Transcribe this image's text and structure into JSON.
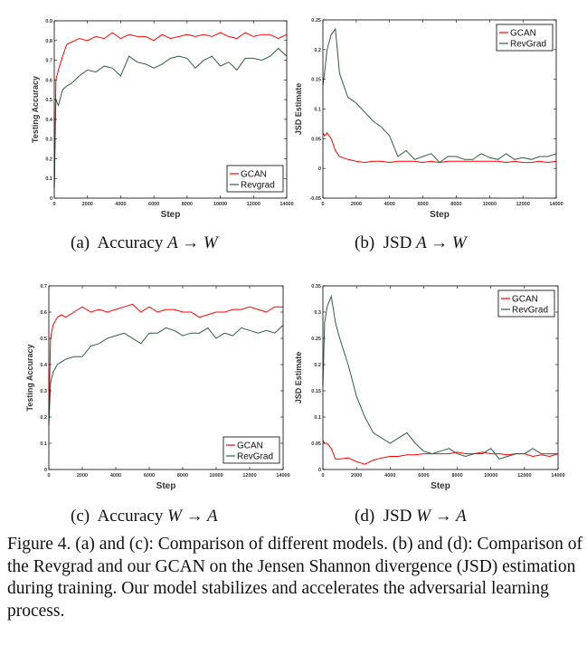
{
  "colors": {
    "GCAN": "#ff0000",
    "RevGrad": "#2e5e45"
  },
  "chart_data": [
    {
      "id": "a",
      "type": "line",
      "xlabel": "Step",
      "ylabel": "Testing Accuracy",
      "xlim": [
        0,
        14000
      ],
      "ylim": [
        0,
        0.9
      ],
      "xticks": [
        "0",
        "2000",
        "4000",
        "6000",
        "8000",
        "10000",
        "12000",
        "14000"
      ],
      "yticks": [
        "0",
        "0.1",
        "0.2",
        "0.3",
        "0.4",
        "0.5",
        "0.6",
        "0.7",
        "0.8",
        "0.9"
      ],
      "legend": "bottom-right",
      "grid": false,
      "x": [
        0,
        100,
        250,
        500,
        750,
        1000,
        1500,
        2000,
        2500,
        3000,
        3500,
        4000,
        4500,
        5000,
        5500,
        6000,
        6500,
        7000,
        7500,
        8000,
        8500,
        9000,
        9500,
        10000,
        10500,
        11000,
        11500,
        12000,
        12500,
        13000,
        13500,
        14000
      ],
      "series": [
        {
          "name": "GCAN",
          "values": [
            0.05,
            0.6,
            0.65,
            0.72,
            0.78,
            0.79,
            0.81,
            0.8,
            0.82,
            0.81,
            0.84,
            0.81,
            0.83,
            0.82,
            0.82,
            0.8,
            0.83,
            0.81,
            0.82,
            0.83,
            0.82,
            0.83,
            0.82,
            0.84,
            0.82,
            0.81,
            0.84,
            0.82,
            0.83,
            0.83,
            0.81,
            0.83
          ]
        },
        {
          "name": "Revgrad",
          "values": [
            0.05,
            0.5,
            0.47,
            0.55,
            0.57,
            0.58,
            0.62,
            0.65,
            0.64,
            0.67,
            0.66,
            0.62,
            0.72,
            0.69,
            0.68,
            0.66,
            0.68,
            0.71,
            0.72,
            0.71,
            0.66,
            0.7,
            0.72,
            0.67,
            0.69,
            0.65,
            0.71,
            0.71,
            0.7,
            0.72,
            0.76,
            0.72
          ]
        }
      ]
    },
    {
      "id": "b",
      "type": "line",
      "xlabel": "Step",
      "ylabel": "JSD Estimate",
      "xlim": [
        0,
        14000
      ],
      "ylim": [
        -0.05,
        0.25
      ],
      "xticks": [
        "0",
        "2000",
        "4000",
        "6000",
        "8000",
        "10000",
        "12000",
        "14000"
      ],
      "yticks": [
        "-0.05",
        "0",
        "0.05",
        "0.1",
        "0.15",
        "0.2",
        "0.25"
      ],
      "legend": "top-right",
      "grid": false,
      "x": [
        0,
        100,
        250,
        500,
        750,
        1000,
        1500,
        2000,
        2500,
        3000,
        3500,
        4000,
        4500,
        5000,
        5500,
        6000,
        6500,
        7000,
        7500,
        8000,
        8500,
        9000,
        9500,
        10000,
        10500,
        11000,
        11500,
        12000,
        12500,
        13000,
        13500,
        14000
      ],
      "series": [
        {
          "name": "GCAN",
          "values": [
            0.06,
            0.055,
            0.06,
            0.05,
            0.03,
            0.02,
            0.015,
            0.012,
            0.01,
            0.012,
            0.012,
            0.01,
            0.012,
            0.012,
            0.012,
            0.01,
            0.012,
            0.01,
            0.012,
            0.012,
            0.012,
            0.012,
            0.012,
            0.012,
            0.012,
            0.01,
            0.012,
            0.01,
            0.01,
            0.012,
            0.01,
            0.012
          ]
        },
        {
          "name": "RevGrad",
          "values": [
            0.14,
            0.16,
            0.2,
            0.225,
            0.235,
            0.16,
            0.12,
            0.11,
            0.095,
            0.08,
            0.07,
            0.055,
            0.02,
            0.03,
            0.015,
            0.02,
            0.025,
            0.01,
            0.02,
            0.02,
            0.015,
            0.015,
            0.025,
            0.018,
            0.015,
            0.025,
            0.015,
            0.018,
            0.015,
            0.02,
            0.02,
            0.025
          ]
        }
      ]
    },
    {
      "id": "c",
      "type": "line",
      "xlabel": "Step",
      "ylabel": "Testing Accuracy",
      "xlim": [
        0,
        14000
      ],
      "ylim": [
        0,
        0.7
      ],
      "xticks": [
        "0",
        "2000",
        "4000",
        "6000",
        "8000",
        "10000",
        "12000",
        "14000"
      ],
      "yticks": [
        "0",
        "0.1",
        "0.2",
        "0.3",
        "0.4",
        "0.5",
        "0.6",
        "0.7"
      ],
      "legend": "bottom-right",
      "grid": false,
      "x": [
        0,
        100,
        250,
        500,
        750,
        1000,
        1500,
        2000,
        2500,
        3000,
        3500,
        4000,
        4500,
        5000,
        5500,
        6000,
        6500,
        7000,
        7500,
        8000,
        8500,
        9000,
        9500,
        10000,
        10500,
        11000,
        11500,
        12000,
        12500,
        13000,
        13500,
        14000
      ],
      "series": [
        {
          "name": "GCAN",
          "values": [
            0.2,
            0.5,
            0.55,
            0.58,
            0.59,
            0.58,
            0.6,
            0.62,
            0.6,
            0.61,
            0.6,
            0.61,
            0.62,
            0.63,
            0.6,
            0.62,
            0.6,
            0.61,
            0.61,
            0.6,
            0.6,
            0.58,
            0.59,
            0.6,
            0.6,
            0.61,
            0.61,
            0.62,
            0.61,
            0.6,
            0.62,
            0.62
          ]
        },
        {
          "name": "RevGrad",
          "values": [
            0.17,
            0.33,
            0.37,
            0.4,
            0.41,
            0.42,
            0.43,
            0.43,
            0.47,
            0.48,
            0.5,
            0.51,
            0.52,
            0.5,
            0.48,
            0.52,
            0.52,
            0.54,
            0.53,
            0.51,
            0.52,
            0.52,
            0.54,
            0.5,
            0.52,
            0.51,
            0.54,
            0.53,
            0.52,
            0.53,
            0.52,
            0.55
          ]
        }
      ]
    },
    {
      "id": "d",
      "type": "line",
      "xlabel": "Step",
      "ylabel": "JSD Estimate",
      "xlim": [
        0,
        14000
      ],
      "ylim": [
        0,
        0.35
      ],
      "xticks": [
        "0",
        "2000",
        "4000",
        "6000",
        "8000",
        "10000",
        "12000",
        "14000"
      ],
      "yticks": [
        "0",
        "0.05",
        "0.1",
        "0.15",
        "0.2",
        "0.25",
        "0.3",
        "0.35"
      ],
      "legend": "top-right",
      "grid": false,
      "x": [
        0,
        100,
        250,
        500,
        750,
        1000,
        1500,
        2000,
        2500,
        3000,
        3500,
        4000,
        4500,
        5000,
        5500,
        6000,
        6500,
        7000,
        7500,
        8000,
        8500,
        9000,
        9500,
        10000,
        10500,
        11000,
        11500,
        12000,
        12500,
        13000,
        13500,
        14000
      ],
      "series": [
        {
          "name": "GCAN",
          "values": [
            0.055,
            0.05,
            0.05,
            0.04,
            0.02,
            0.02,
            0.022,
            0.015,
            0.01,
            0.018,
            0.022,
            0.025,
            0.025,
            0.028,
            0.028,
            0.03,
            0.03,
            0.03,
            0.03,
            0.033,
            0.03,
            0.03,
            0.033,
            0.03,
            0.03,
            0.028,
            0.03,
            0.03,
            0.025,
            0.028,
            0.025,
            0.03
          ]
        },
        {
          "name": "RevGrad",
          "values": [
            0.16,
            0.28,
            0.31,
            0.33,
            0.28,
            0.25,
            0.2,
            0.14,
            0.1,
            0.07,
            0.06,
            0.05,
            0.06,
            0.07,
            0.05,
            0.035,
            0.03,
            0.035,
            0.04,
            0.03,
            0.025,
            0.03,
            0.03,
            0.04,
            0.02,
            0.025,
            0.03,
            0.03,
            0.04,
            0.03,
            0.03,
            0.03
          ]
        }
      ]
    }
  ],
  "subcaptions": {
    "a": {
      "label": "(a)",
      "text": "Accuracy",
      "math": "A → W"
    },
    "b": {
      "label": "(b)",
      "text": "JSD",
      "math": "A → W"
    },
    "c": {
      "label": "(c)",
      "text": "Accuracy",
      "math": "W → A"
    },
    "d": {
      "label": "(d)",
      "text": "JSD",
      "math": "W → A"
    }
  },
  "figure_caption": "Figure 4. (a) and (c): Comparison of different models. (b) and (d): Comparison of the Revgrad and our GCAN on the Jensen Shannon divergence (JSD) estimation during training. Our model stabilizes and accelerates the adversarial learning process."
}
